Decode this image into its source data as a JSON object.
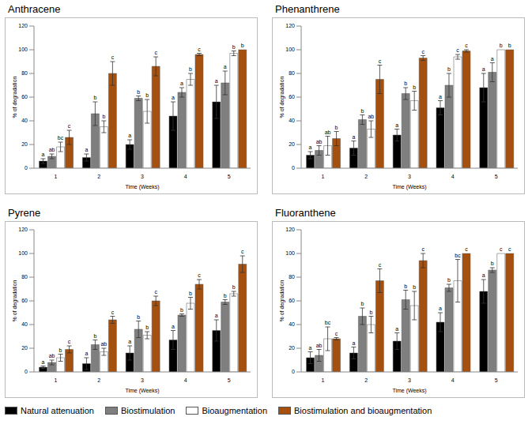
{
  "chart_data": [
    {
      "type": "bar",
      "title": "Anthracene",
      "x_label": "Time (Weeks)",
      "y_label": "% of degradation",
      "categories": [
        "1",
        "2",
        "3",
        "4",
        "5"
      ],
      "ylim": [
        0,
        120
      ],
      "yticks": [
        0,
        20,
        40,
        60,
        80,
        100,
        120
      ],
      "series": [
        {
          "name": "Natural attenuation",
          "color": "#000000",
          "values": [
            6,
            9,
            20,
            44,
            56
          ],
          "errors": [
            2,
            3,
            4,
            12,
            14
          ],
          "letters": [
            "a",
            "a",
            "a",
            "a",
            "a"
          ]
        },
        {
          "name": "Biostimulation",
          "color": "#7f7f7f",
          "values": [
            10,
            46,
            59,
            64,
            72
          ],
          "errors": [
            2,
            10,
            2,
            4,
            10
          ],
          "letters": [
            "ab",
            "b",
            "b",
            "a",
            "a"
          ]
        },
        {
          "name": "Bioaugmentation",
          "color": "#ffffff",
          "values": [
            18,
            35,
            48,
            75,
            97
          ],
          "errors": [
            4,
            5,
            10,
            5,
            2
          ],
          "letters": [
            "bc",
            "b",
            "b",
            "b",
            "b"
          ]
        },
        {
          "name": "Biostimulation and bioaugmentation",
          "color": "#a5500f",
          "values": [
            26,
            80,
            86,
            96,
            100
          ],
          "errors": [
            6,
            10,
            8,
            1,
            0
          ],
          "letters": [
            "c",
            "c",
            "c",
            "c",
            "b"
          ]
        }
      ]
    },
    {
      "type": "bar",
      "title": "Phenanthrene",
      "x_label": "Time (Weeks)",
      "y_label": "% of degradation",
      "categories": [
        "1",
        "2",
        "3",
        "4",
        "5"
      ],
      "ylim": [
        0,
        120
      ],
      "yticks": [
        0,
        20,
        40,
        60,
        80,
        100,
        120
      ],
      "series": [
        {
          "name": "Natural attenuation",
          "color": "#000000",
          "values": [
            11,
            17,
            28,
            51,
            68
          ],
          "errors": [
            3,
            6,
            5,
            6,
            12
          ],
          "letters": [
            "a",
            "a",
            "a",
            "a",
            "a"
          ]
        },
        {
          "name": "Biostimulation",
          "color": "#7f7f7f",
          "values": [
            15,
            41,
            63,
            70,
            81
          ],
          "errors": [
            4,
            4,
            5,
            10,
            8
          ],
          "letters": [
            "ab",
            "b",
            "b",
            "b",
            "a"
          ]
        },
        {
          "name": "Bioaugmentation",
          "color": "#ffffff",
          "values": [
            19,
            33,
            57,
            94,
            100
          ],
          "errors": [
            8,
            7,
            8,
            2,
            0
          ],
          "letters": [
            "ab",
            "ab",
            "b",
            "c",
            "b"
          ]
        },
        {
          "name": "Biostimulation and bioaugmentation",
          "color": "#a5500f",
          "values": [
            25,
            75,
            93,
            99,
            100
          ],
          "errors": [
            6,
            12,
            2,
            1,
            0
          ],
          "letters": [
            "b",
            "c",
            "c",
            "c",
            "b"
          ]
        }
      ]
    },
    {
      "type": "bar",
      "title": "Pyrene",
      "x_label": "Time (Weeks)",
      "y_label": "% of degradation",
      "categories": [
        "1",
        "2",
        "3",
        "4",
        "5"
      ],
      "ylim": [
        0,
        120
      ],
      "yticks": [
        0,
        20,
        40,
        60,
        80,
        100,
        120
      ],
      "series": [
        {
          "name": "Natural attenuation",
          "color": "#000000",
          "values": [
            4,
            7,
            16,
            27,
            35
          ],
          "errors": [
            1,
            5,
            6,
            8,
            9
          ],
          "letters": [
            "a",
            "a",
            "a",
            "a",
            "a"
          ]
        },
        {
          "name": "Biostimulation",
          "color": "#7f7f7f",
          "values": [
            8,
            23,
            36,
            48,
            59
          ],
          "errors": [
            2,
            4,
            7,
            1,
            2
          ],
          "letters": [
            "ab",
            "b",
            "b",
            "b",
            "b"
          ]
        },
        {
          "name": "Bioaugmentation",
          "color": "#ffffff",
          "values": [
            12,
            17,
            31,
            58,
            66
          ],
          "errors": [
            3,
            3,
            3,
            5,
            2
          ],
          "letters": [
            "b",
            "ab",
            "b",
            "b",
            "b"
          ]
        },
        {
          "name": "Biostimulation and bioaugmentation",
          "color": "#a5500f",
          "values": [
            19,
            44,
            60,
            74,
            91
          ],
          "errors": [
            3,
            3,
            4,
            4,
            7
          ],
          "letters": [
            "c",
            "c",
            "c",
            "c",
            "c"
          ]
        }
      ]
    },
    {
      "type": "bar",
      "title": "Fluoranthene",
      "x_label": "Time (Weeks)",
      "y_label": "% of degradation",
      "categories": [
        "1",
        "2",
        "3",
        "4",
        "5"
      ],
      "ylim": [
        0,
        120
      ],
      "yticks": [
        0,
        20,
        40,
        60,
        80,
        100,
        120
      ],
      "series": [
        {
          "name": "Natural attenuation",
          "color": "#000000",
          "values": [
            12,
            16,
            26,
            42,
            68
          ],
          "errors": [
            5,
            5,
            7,
            8,
            10
          ],
          "letters": [
            "a",
            "a",
            "a",
            "a",
            "a"
          ]
        },
        {
          "name": "Biostimulation",
          "color": "#7f7f7f",
          "values": [
            14,
            47,
            61,
            71,
            86
          ],
          "errors": [
            5,
            7,
            8,
            3,
            2
          ],
          "letters": [
            "ab",
            "b",
            "b",
            "b",
            "b"
          ]
        },
        {
          "name": "Bioaugmentation",
          "color": "#ffffff",
          "values": [
            28,
            40,
            56,
            77,
            100
          ],
          "errors": [
            10,
            7,
            12,
            18,
            0
          ],
          "letters": [
            "bc",
            "b",
            "b",
            "bc",
            "c"
          ]
        },
        {
          "name": "Biostimulation and bioaugmentation",
          "color": "#a5500f",
          "values": [
            28,
            77,
            94,
            100,
            100
          ],
          "errors": [
            1,
            10,
            6,
            0,
            0
          ],
          "letters": [
            "c",
            "c",
            "c",
            "c",
            "c"
          ]
        }
      ]
    }
  ]
}
